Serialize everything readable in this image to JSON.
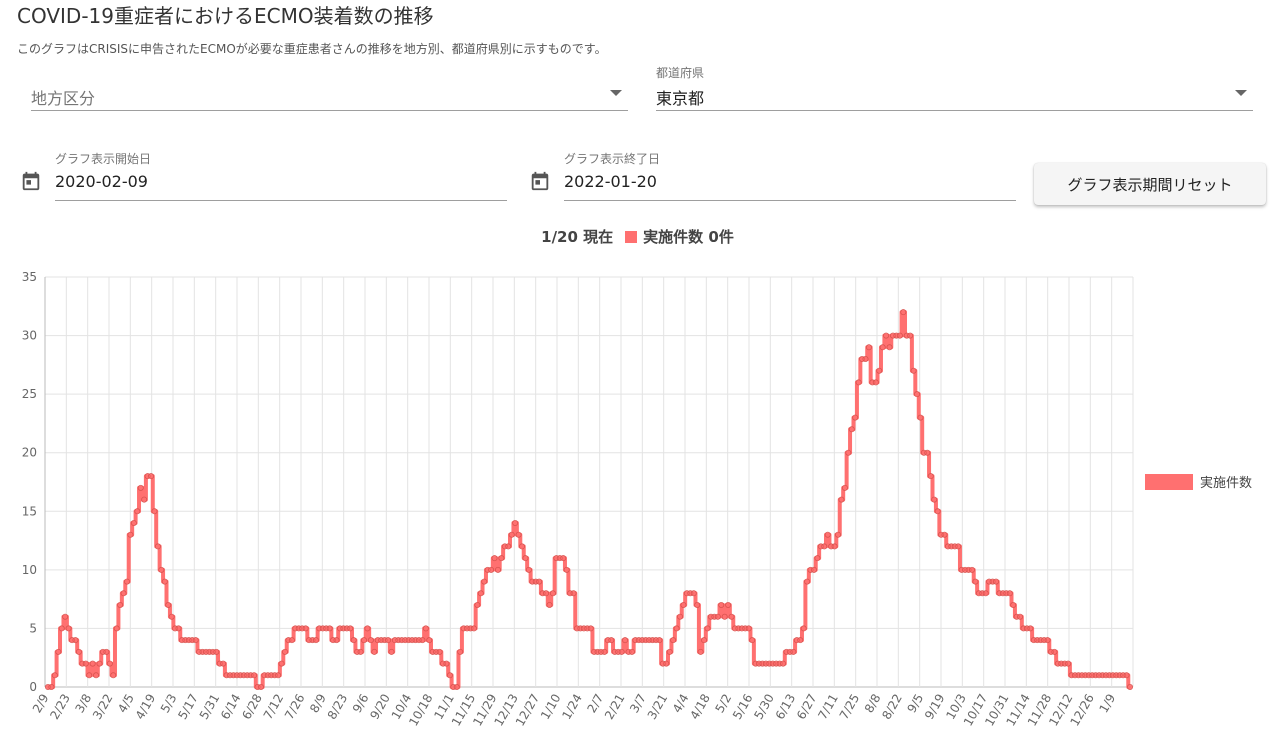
{
  "page": {
    "title": "COVID-19重症者におけるECMO装着数の推移",
    "description": "このグラフはCRISISに申告されたECMOが必要な重症患者さんの推移を地方別、都道府県別に示すものです。"
  },
  "filters": {
    "region": {
      "label": "",
      "placeholder": "地方区分",
      "value": ""
    },
    "prefecture": {
      "label": "都道府県",
      "value": "東京都"
    },
    "start_date": {
      "label": "グラフ表示開始日",
      "value": "2020-02-09",
      "icon": "calendar-icon"
    },
    "end_date": {
      "label": "グラフ表示終了日",
      "value": "2022-01-20",
      "icon": "calendar-icon"
    },
    "reset_button": "グラフ表示期間リセット"
  },
  "chart_header": {
    "as_of": "1/20 現在",
    "series_label": "実施件数",
    "count": "0件",
    "swatch_color": "#ff7070"
  },
  "chart_data": {
    "type": "line",
    "ylim": [
      0,
      35
    ],
    "y_ticks": [
      0,
      5,
      10,
      15,
      20,
      25,
      30,
      35
    ],
    "grid": true,
    "legend": {
      "position": "right",
      "entries": [
        "実施件数"
      ]
    },
    "line_color": "#ff7070",
    "x_tick_labels": [
      "2/9",
      "2/23",
      "3/8",
      "3/22",
      "4/5",
      "4/19",
      "5/3",
      "5/17",
      "5/31",
      "6/14",
      "6/28",
      "7/12",
      "7/26",
      "8/9",
      "8/23",
      "9/6",
      "9/20",
      "10/4",
      "10/18",
      "11/1",
      "11/15",
      "11/29",
      "12/13",
      "12/27",
      "1/10",
      "1/24",
      "2/7",
      "2/21",
      "3/7",
      "3/21",
      "4/4",
      "4/18",
      "5/2",
      "5/16",
      "5/30",
      "6/13",
      "6/27",
      "7/11",
      "7/25",
      "8/8",
      "8/22",
      "9/5",
      "9/19",
      "10/3",
      "10/17",
      "10/31",
      "11/14",
      "11/28",
      "12/12",
      "12/26",
      "1/9"
    ],
    "series": [
      {
        "name": "実施件数",
        "values": [
          0,
          0,
          1,
          3,
          5,
          6,
          5,
          4,
          4,
          3,
          2,
          2,
          1,
          2,
          1,
          2,
          3,
          3,
          2,
          1,
          5,
          7,
          8,
          9,
          13,
          14,
          15,
          17,
          16,
          18,
          18,
          15,
          12,
          10,
          9,
          7,
          6,
          5,
          5,
          4,
          4,
          4,
          4,
          4,
          3,
          3,
          3,
          3,
          3,
          3,
          2,
          2,
          1,
          1,
          1,
          1,
          1,
          1,
          1,
          1,
          1,
          0,
          0,
          1,
          1,
          1,
          1,
          1,
          2,
          3,
          4,
          4,
          5,
          5,
          5,
          5,
          4,
          4,
          4,
          5,
          5,
          5,
          5,
          4,
          4,
          5,
          5,
          5,
          5,
          4,
          3,
          3,
          4,
          5,
          4,
          3,
          4,
          4,
          4,
          4,
          3,
          4,
          4,
          4,
          4,
          4,
          4,
          4,
          4,
          4,
          5,
          4,
          3,
          3,
          3,
          2,
          2,
          1,
          0,
          0,
          3,
          5,
          5,
          5,
          5,
          7,
          8,
          9,
          10,
          10,
          11,
          10,
          11,
          12,
          12,
          13,
          14,
          13,
          12,
          11,
          10,
          9,
          9,
          9,
          8,
          8,
          7,
          8,
          11,
          11,
          11,
          10,
          8,
          8,
          5,
          5,
          5,
          5,
          5,
          3,
          3,
          3,
          3,
          4,
          4,
          3,
          3,
          3,
          4,
          3,
          3,
          4,
          4,
          4,
          4,
          4,
          4,
          4,
          4,
          2,
          2,
          3,
          4,
          5,
          6,
          7,
          8,
          8,
          8,
          7,
          3,
          4,
          5,
          6,
          6,
          6,
          7,
          6,
          7,
          6,
          5,
          5,
          5,
          5,
          5,
          4,
          2,
          2,
          2,
          2,
          2,
          2,
          2,
          2,
          2,
          3,
          3,
          3,
          4,
          4,
          5,
          9,
          10,
          10,
          11,
          12,
          12,
          13,
          12,
          12,
          13,
          16,
          17,
          20,
          22,
          23,
          26,
          28,
          28,
          29,
          26,
          26,
          27,
          29,
          30,
          29,
          30,
          30,
          30,
          32,
          30,
          30,
          27,
          25,
          23,
          20,
          20,
          18,
          16,
          15,
          13,
          13,
          12,
          12,
          12,
          12,
          10,
          10,
          10,
          10,
          9,
          8,
          8,
          8,
          9,
          9,
          9,
          8,
          8,
          8,
          8,
          7,
          6,
          6,
          5,
          5,
          5,
          4,
          4,
          4,
          4,
          4,
          3,
          3,
          2,
          2,
          2,
          2,
          1,
          1,
          1,
          1,
          1,
          1,
          1,
          1,
          1,
          1,
          1,
          1,
          1,
          1,
          1,
          1,
          1,
          0
        ]
      }
    ]
  }
}
